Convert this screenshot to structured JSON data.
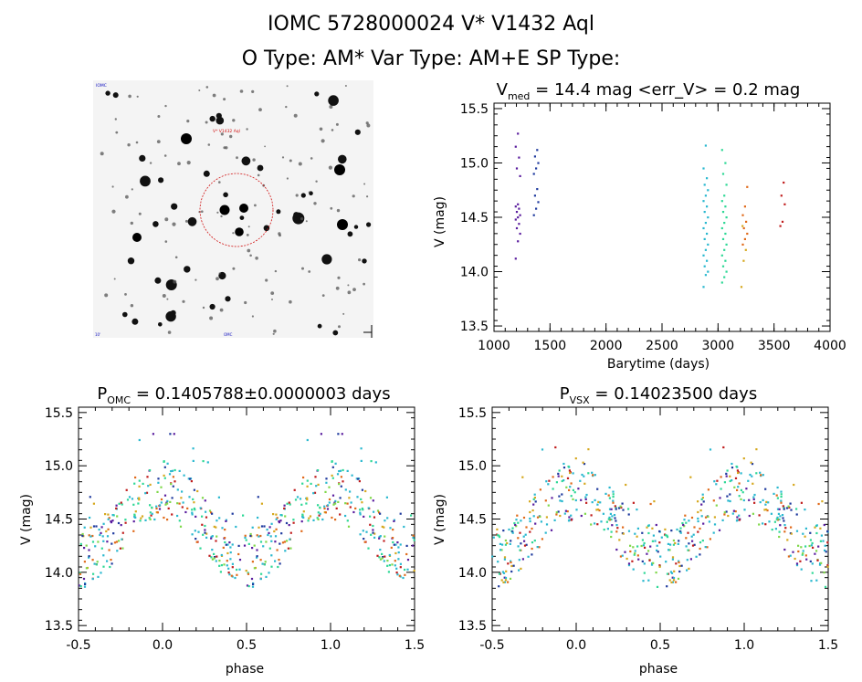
{
  "header": {
    "line1": "IOMC 5728000024    V* V1432 Aql",
    "line2": "O Type: AM*   Var Type: AM+E   SP Type:"
  },
  "finder": {
    "top_left_label": "IOMC",
    "target_label": "V* V1432 Aql",
    "bottom_label": "OMC",
    "bottom_left_label": "10'"
  },
  "chart_data": [
    {
      "type": "scatter",
      "title": "V_med = 14.4 mag <err_V> = 0.2 mag",
      "title_parts": {
        "pre": "V",
        "sub": "med",
        "post": " = 14.4 mag <err_V> = 0.2 mag"
      },
      "xlabel": "Barytime (days)",
      "ylabel": "V (mag)",
      "xlim": [
        1000,
        4000
      ],
      "ylim": [
        15.55,
        13.45
      ],
      "xticks": [
        "1000",
        "1500",
        "2000",
        "2500",
        "3000",
        "3500",
        "4000"
      ],
      "yticks": [
        "13.5",
        "14.0",
        "14.5",
        "15.0",
        "15.5"
      ],
      "groups": [
        {
          "color": "#5a1d9e",
          "x": 1213,
          "y": [
            14.12,
            14.28,
            14.35,
            14.4,
            14.44,
            14.48,
            14.5,
            14.52,
            14.55,
            14.58,
            14.6,
            14.62,
            14.88,
            14.95,
            15.05,
            15.15,
            15.27
          ]
        },
        {
          "color": "#1f3a9e",
          "x": 1375,
          "y": [
            14.52,
            14.58,
            14.64,
            14.7,
            14.76,
            14.9,
            14.95,
            15.0,
            15.06,
            15.12
          ]
        },
        {
          "color": "#2ab8cf",
          "x": 2890,
          "y": [
            13.86,
            13.97,
            14.0,
            14.05,
            14.1,
            14.15,
            14.2,
            14.25,
            14.3,
            14.35,
            14.4,
            14.45,
            14.5,
            14.55,
            14.6,
            14.65,
            14.7,
            14.75,
            14.8,
            14.86,
            14.95,
            15.16
          ]
        },
        {
          "color": "#2ed896",
          "x": 3055,
          "y": [
            13.9,
            13.95,
            14.0,
            14.05,
            14.1,
            14.15,
            14.2,
            14.25,
            14.3,
            14.35,
            14.4,
            14.45,
            14.5,
            14.55,
            14.6,
            14.65,
            14.7,
            14.8,
            14.9,
            15.0,
            15.12
          ]
        },
        {
          "color": "#d6a81e",
          "x": 3228,
          "y": [
            13.86,
            14.1,
            14.2,
            14.42
          ]
        },
        {
          "color": "#e06a1a",
          "x": 3240,
          "y": [
            14.25,
            14.3,
            14.35,
            14.4,
            14.46,
            14.52,
            14.6,
            14.78
          ]
        },
        {
          "color": "#c01c1c",
          "x": 3575,
          "y": [
            14.42,
            14.46,
            14.62,
            14.7,
            14.82
          ]
        }
      ]
    },
    {
      "type": "scatter",
      "title": "P_OMC = 0.1405788±0.0000003 days",
      "title_parts": {
        "pre": "P",
        "sub": "OMC",
        "post": " = 0.1405788±0.0000003 days"
      },
      "xlabel": "phase",
      "ylabel": "V (mag)",
      "xlim": [
        -0.5,
        1.5
      ],
      "ylim": [
        15.55,
        13.45
      ],
      "xticks": [
        "-0.5",
        "0.0",
        "0.5",
        "1.0",
        "1.5"
      ],
      "yticks": [
        "13.5",
        "14.0",
        "14.5",
        "15.0",
        "15.5"
      ],
      "seed": 7,
      "n_points": 300
    },
    {
      "type": "scatter",
      "title": "P_VSX = 0.14023500 days",
      "title_parts": {
        "pre": "P",
        "sub": "VSX",
        "post": " = 0.14023500 days"
      },
      "xlabel": "phase",
      "ylabel": "V (mag)",
      "xlim": [
        -0.5,
        1.5
      ],
      "ylim": [
        15.55,
        13.45
      ],
      "xticks": [
        "-0.5",
        "0.0",
        "0.5",
        "1.0",
        "1.5"
      ],
      "yticks": [
        "13.5",
        "14.0",
        "14.5",
        "15.0",
        "15.5"
      ],
      "seed": 13,
      "n_points": 300
    }
  ],
  "phase_palette": [
    "#2ab8cf",
    "#2ab8cf",
    "#2ab8cf",
    "#2ed896",
    "#2ed896",
    "#5a1d9e",
    "#1f3a9e",
    "#d6a81e",
    "#e06a1a",
    "#c01c1c",
    "#7fd84a"
  ]
}
